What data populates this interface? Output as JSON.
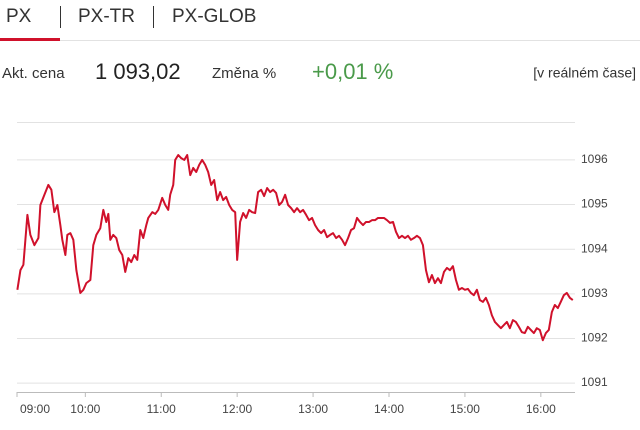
{
  "tabs": [
    "PX",
    "PX-TR",
    "PX-GLOB"
  ],
  "quote": {
    "price_label": "Akt. cena",
    "price": "1 093,02",
    "change_label": "Změna %",
    "change": "+0,01 %",
    "realtime": "[v reálném čase]"
  },
  "chart_data": {
    "type": "line",
    "color": "#d0112b",
    "grid": true,
    "xlim": [
      9.1,
      16.45
    ],
    "ylim": [
      1090.8,
      1096.85
    ],
    "xticks": [
      {
        "value": 9,
        "label": "09:00"
      },
      {
        "value": 10,
        "label": "10:00"
      },
      {
        "value": 11,
        "label": "11:00"
      },
      {
        "value": 12,
        "label": "12:00"
      },
      {
        "value": 13,
        "label": "13:00"
      },
      {
        "value": 14,
        "label": "14:00"
      },
      {
        "value": 15,
        "label": "15:00"
      },
      {
        "value": 16,
        "label": "16:00"
      }
    ],
    "yticks": [
      1091,
      1092,
      1093,
      1094,
      1095,
      1096
    ],
    "x": [
      9.105,
      9.145,
      9.184,
      9.237,
      9.276,
      9.329,
      9.382,
      9.408,
      9.461,
      9.513,
      9.553,
      9.592,
      9.632,
      9.671,
      9.697,
      9.737,
      9.763,
      9.803,
      9.842,
      9.882,
      9.934,
      9.974,
      10.013,
      10.066,
      10.105,
      10.145,
      10.197,
      10.237,
      10.276,
      10.303,
      10.329,
      10.368,
      10.408,
      10.447,
      10.487,
      10.526,
      10.566,
      10.605,
      10.645,
      10.684,
      10.724,
      10.763,
      10.803,
      10.829,
      10.882,
      10.921,
      10.961,
      11.013,
      11.053,
      11.092,
      11.118,
      11.158,
      11.184,
      11.224,
      11.263,
      11.303,
      11.342,
      11.382,
      11.421,
      11.461,
      11.5,
      11.539,
      11.579,
      11.618,
      11.658,
      11.697,
      11.737,
      11.776,
      11.816,
      11.855,
      11.895,
      11.934,
      11.974,
      12.0,
      12.039,
      12.079,
      12.118,
      12.158,
      12.197,
      12.237,
      12.276,
      12.316,
      12.355,
      12.395,
      12.434,
      12.474,
      12.513,
      12.553,
      12.592,
      12.632,
      12.671,
      12.711,
      12.75,
      12.789,
      12.829,
      12.868,
      12.908,
      12.947,
      12.987,
      13.026,
      13.066,
      13.105,
      13.145,
      13.184,
      13.224,
      13.263,
      13.303,
      13.342,
      13.382,
      13.421,
      13.461,
      13.5,
      13.539,
      13.579,
      13.618,
      13.658,
      13.697,
      13.737,
      13.776,
      13.816,
      13.855,
      13.895,
      13.934,
      13.974,
      14.013,
      14.053,
      14.092,
      14.132,
      14.171,
      14.211,
      14.25,
      14.289,
      14.329,
      14.368,
      14.408,
      14.447,
      14.487,
      14.526,
      14.566,
      14.605,
      14.645,
      14.684,
      14.724,
      14.763,
      14.803,
      14.842,
      14.882,
      14.921,
      14.961,
      15.0,
      15.039,
      15.079,
      15.118,
      15.158,
      15.197,
      15.237,
      15.276,
      15.316,
      15.355,
      15.395,
      15.434,
      15.474,
      15.513,
      15.553,
      15.592,
      15.632,
      15.671,
      15.711,
      15.75,
      15.789,
      15.829,
      15.868,
      15.908,
      15.947,
      15.987,
      16.026,
      16.066,
      16.105,
      16.145,
      16.184,
      16.224,
      16.263,
      16.303,
      16.342,
      16.382,
      16.421
    ],
    "values": [
      1093.09,
      1093.53,
      1093.65,
      1094.77,
      1094.32,
      1094.09,
      1094.25,
      1094.99,
      1095.22,
      1095.44,
      1095.33,
      1094.83,
      1094.99,
      1094.54,
      1094.21,
      1093.87,
      1094.32,
      1094.36,
      1094.21,
      1093.53,
      1093.02,
      1093.09,
      1093.24,
      1093.31,
      1094.09,
      1094.32,
      1094.47,
      1094.88,
      1094.61,
      1094.79,
      1094.21,
      1094.32,
      1094.25,
      1093.98,
      1093.87,
      1093.49,
      1093.8,
      1093.71,
      1093.87,
      1093.76,
      1094.43,
      1094.25,
      1094.54,
      1094.7,
      1094.83,
      1094.79,
      1094.88,
      1095.15,
      1094.99,
      1094.88,
      1095.22,
      1095.44,
      1096.0,
      1096.11,
      1096.04,
      1096.0,
      1096.11,
      1095.66,
      1095.82,
      1095.73,
      1095.89,
      1096.0,
      1095.89,
      1095.73,
      1095.44,
      1095.55,
      1095.1,
      1095.28,
      1095.1,
      1095.17,
      1094.99,
      1094.88,
      1094.83,
      1093.76,
      1094.61,
      1094.81,
      1094.7,
      1094.88,
      1094.83,
      1094.81,
      1095.28,
      1095.33,
      1095.19,
      1095.37,
      1095.28,
      1095.33,
      1095.26,
      1094.99,
      1095.06,
      1095.22,
      1094.99,
      1094.92,
      1094.83,
      1094.92,
      1094.83,
      1094.88,
      1094.77,
      1094.65,
      1094.7,
      1094.54,
      1094.43,
      1094.36,
      1094.43,
      1094.27,
      1094.32,
      1094.36,
      1094.25,
      1094.3,
      1094.21,
      1094.09,
      1094.25,
      1094.43,
      1094.47,
      1094.7,
      1094.61,
      1094.54,
      1094.61,
      1094.61,
      1094.65,
      1094.65,
      1094.7,
      1094.7,
      1094.7,
      1094.65,
      1094.59,
      1094.61,
      1094.39,
      1094.25,
      1094.3,
      1094.25,
      1094.3,
      1094.21,
      1094.25,
      1094.3,
      1094.25,
      1094.09,
      1093.53,
      1093.26,
      1093.42,
      1093.24,
      1093.35,
      1093.24,
      1093.49,
      1093.58,
      1093.53,
      1093.62,
      1093.31,
      1093.09,
      1093.13,
      1093.09,
      1093.11,
      1093.02,
      1092.97,
      1093.09,
      1092.86,
      1092.82,
      1092.91,
      1092.75,
      1092.52,
      1092.37,
      1092.3,
      1092.23,
      1092.3,
      1092.37,
      1092.23,
      1092.41,
      1092.37,
      1092.26,
      1092.14,
      1092.12,
      1092.26,
      1092.19,
      1092.12,
      1092.23,
      1092.19,
      1091.96,
      1092.12,
      1092.19,
      1092.59,
      1092.75,
      1092.68,
      1092.82,
      1092.97,
      1093.02,
      1092.91,
      1092.86
    ]
  }
}
